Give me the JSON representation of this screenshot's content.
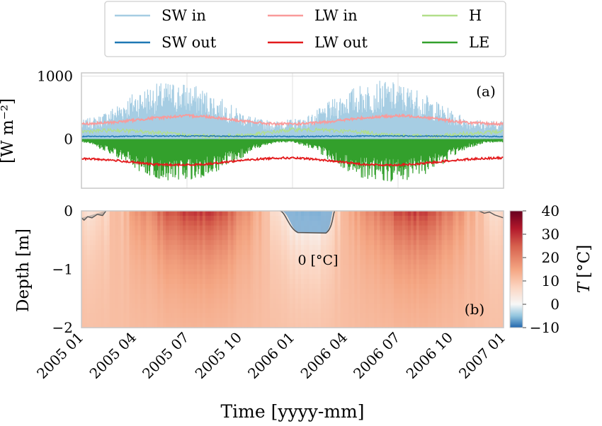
{
  "legend": {
    "entries": [
      {
        "label": "SW in",
        "color": "#a6cde3"
      },
      {
        "label": "LW in",
        "color": "#f99a9a"
      },
      {
        "label": "H",
        "color": "#b2df8a"
      },
      {
        "label": "SW out",
        "color": "#1f78b4"
      },
      {
        "label": "LW out",
        "color": "#e31a1c"
      },
      {
        "label": "LE",
        "color": "#33a02c"
      }
    ]
  },
  "xaxis": {
    "label": "Time [yyyy-mm]",
    "ticks": [
      "2005 01",
      "2005 04",
      "2005 07",
      "2005 10",
      "2006 01",
      "2006 04",
      "2006 07",
      "2006 10",
      "2007 01"
    ],
    "range_months": [
      0,
      24
    ]
  },
  "chart_data": [
    {
      "type": "line",
      "panel_label": "(a)",
      "ylabel": "[W m⁻²]",
      "ylim": [
        -780,
        1050
      ],
      "yticks": [
        "1000",
        "0"
      ],
      "ytick_values": [
        1000,
        0
      ],
      "grid": true,
      "x_unit": "months since 2005-01",
      "series": [
        {
          "name": "SW in",
          "color": "#a6cde3",
          "kind": "daily_cycle",
          "x": [
            0,
            1,
            2,
            3,
            4,
            5,
            6,
            7,
            8,
            9,
            10,
            11,
            12,
            13,
            14,
            15,
            16,
            17,
            18,
            19,
            20,
            21,
            22,
            23,
            24
          ],
          "peak": [
            300,
            380,
            560,
            760,
            870,
            920,
            900,
            800,
            640,
            460,
            330,
            290,
            320,
            390,
            580,
            770,
            880,
            930,
            900,
            810,
            640,
            470,
            340,
            300,
            300
          ]
        },
        {
          "name": "LW in",
          "color": "#f99a9a",
          "x": [
            0,
            1,
            2,
            3,
            4,
            5,
            6,
            7,
            8,
            9,
            10,
            11,
            12,
            13,
            14,
            15,
            16,
            17,
            18,
            19,
            20,
            21,
            22,
            23,
            24
          ],
          "values": [
            240,
            250,
            270,
            300,
            330,
            350,
            370,
            360,
            330,
            290,
            260,
            240,
            240,
            250,
            275,
            305,
            335,
            355,
            370,
            360,
            330,
            290,
            260,
            245,
            240
          ]
        },
        {
          "name": "H",
          "color": "#b2df8a",
          "x": [
            0,
            2,
            4,
            6,
            8,
            10,
            12,
            14,
            16,
            18,
            20,
            22,
            24
          ],
          "values": [
            120,
            140,
            110,
            60,
            40,
            80,
            150,
            140,
            110,
            60,
            40,
            90,
            120
          ]
        },
        {
          "name": "SW out",
          "color": "#1f78b4",
          "x": [
            0,
            3,
            6,
            9,
            12,
            15,
            18,
            21,
            24
          ],
          "values": [
            40,
            45,
            50,
            45,
            40,
            45,
            50,
            45,
            40
          ]
        },
        {
          "name": "LW out",
          "color": "#e31a1c",
          "x": [
            0,
            1,
            2,
            3,
            4,
            5,
            6,
            7,
            8,
            9,
            10,
            11,
            12,
            13,
            14,
            15,
            16,
            17,
            18,
            19,
            20,
            21,
            22,
            23,
            24
          ],
          "values": [
            -310,
            -320,
            -340,
            -370,
            -400,
            -410,
            -410,
            -400,
            -370,
            -340,
            -320,
            -300,
            -300,
            -315,
            -340,
            -370,
            -400,
            -410,
            -410,
            -400,
            -370,
            -340,
            -320,
            -305,
            -300
          ]
        },
        {
          "name": "LE",
          "color": "#33a02c",
          "kind": "daily_cycle",
          "x": [
            0,
            1,
            2,
            3,
            4,
            5,
            6,
            7,
            8,
            9,
            10,
            11,
            12,
            13,
            14,
            15,
            16,
            17,
            18,
            19,
            20,
            21,
            22,
            23,
            24
          ],
          "trough": [
            -50,
            -150,
            -320,
            -500,
            -620,
            -680,
            -680,
            -620,
            -500,
            -330,
            -150,
            -60,
            -50,
            -150,
            -320,
            -500,
            -620,
            -680,
            -680,
            -620,
            -500,
            -330,
            -150,
            -60,
            -50
          ]
        }
      ]
    },
    {
      "type": "heatmap",
      "panel_label": "(b)",
      "ylabel": "Depth [m]",
      "ylim": [
        -2,
        0
      ],
      "yticks": [
        "0",
        "−1",
        "−2"
      ],
      "ytick_values": [
        0,
        -1,
        -2
      ],
      "x_unit": "months since 2005-01",
      "monthly_surface_temperature": [
        6,
        8,
        12,
        18,
        23,
        28,
        30,
        28,
        24,
        17,
        10,
        3,
        -3,
        -2,
        8,
        14,
        20,
        25,
        28,
        29,
        24,
        18,
        11,
        5
      ],
      "damping_depth_m": 1.8,
      "zero_isotherm_label": "0 [°C]",
      "colorbar": {
        "label": "T [°C]",
        "label_symbol": "T",
        "label_unit": "[°C]",
        "ticks": [
          "40",
          "30",
          "20",
          "10",
          "0",
          "−10"
        ],
        "tick_values": [
          40,
          30,
          20,
          10,
          0,
          -10
        ],
        "range": [
          -10,
          40
        ]
      }
    }
  ]
}
